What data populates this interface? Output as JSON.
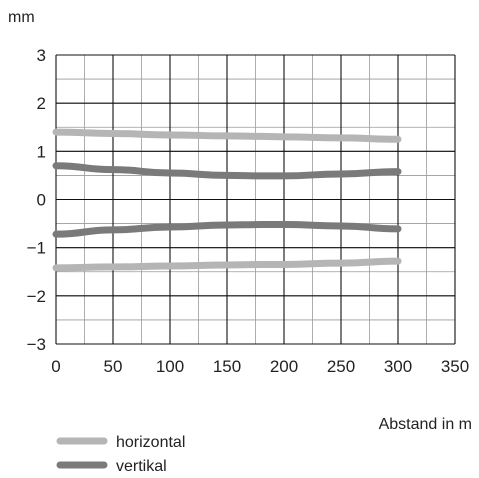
{
  "chart_data": {
    "type": "line",
    "xlabel": "Abstand in m",
    "ylabel": "mm",
    "xlim": [
      0,
      350
    ],
    "ylim": [
      -3,
      3
    ],
    "xticks": [
      0,
      50,
      100,
      150,
      200,
      250,
      300,
      350
    ],
    "yticks": [
      3,
      2,
      1,
      0,
      -1,
      -2,
      -3
    ],
    "ytick_labels": [
      "3",
      "2",
      "1",
      "0",
      "−1",
      "−2",
      "−3"
    ],
    "grid": true,
    "legend_position": "bottom-left",
    "legend": [
      {
        "label": "horizontal",
        "color": "#b5b5b5"
      },
      {
        "label": "vertikal",
        "color": "#7a7a7a"
      }
    ],
    "series": [
      {
        "name": "horizontal",
        "color": "#b5b5b5",
        "x": [
          0,
          50,
          100,
          150,
          180,
          200,
          250,
          300
        ],
        "y": [
          1.4,
          1.37,
          1.34,
          1.32,
          1.31,
          1.3,
          1.28,
          1.25
        ]
      },
      {
        "name": "horizontal",
        "color": "#b5b5b5",
        "x": [
          0,
          50,
          100,
          150,
          180,
          200,
          250,
          300
        ],
        "y": [
          -1.42,
          -1.4,
          -1.38,
          -1.36,
          -1.35,
          -1.35,
          -1.32,
          -1.28
        ]
      },
      {
        "name": "vertikal",
        "color": "#7a7a7a",
        "x": [
          0,
          50,
          100,
          150,
          180,
          200,
          250,
          300
        ],
        "y": [
          0.7,
          0.62,
          0.55,
          0.5,
          0.49,
          0.49,
          0.53,
          0.58
        ]
      },
      {
        "name": "vertikal",
        "color": "#7a7a7a",
        "x": [
          0,
          50,
          100,
          150,
          180,
          200,
          250,
          300
        ],
        "y": [
          -0.72,
          -0.63,
          -0.57,
          -0.53,
          -0.52,
          -0.52,
          -0.55,
          -0.61
        ]
      }
    ]
  }
}
